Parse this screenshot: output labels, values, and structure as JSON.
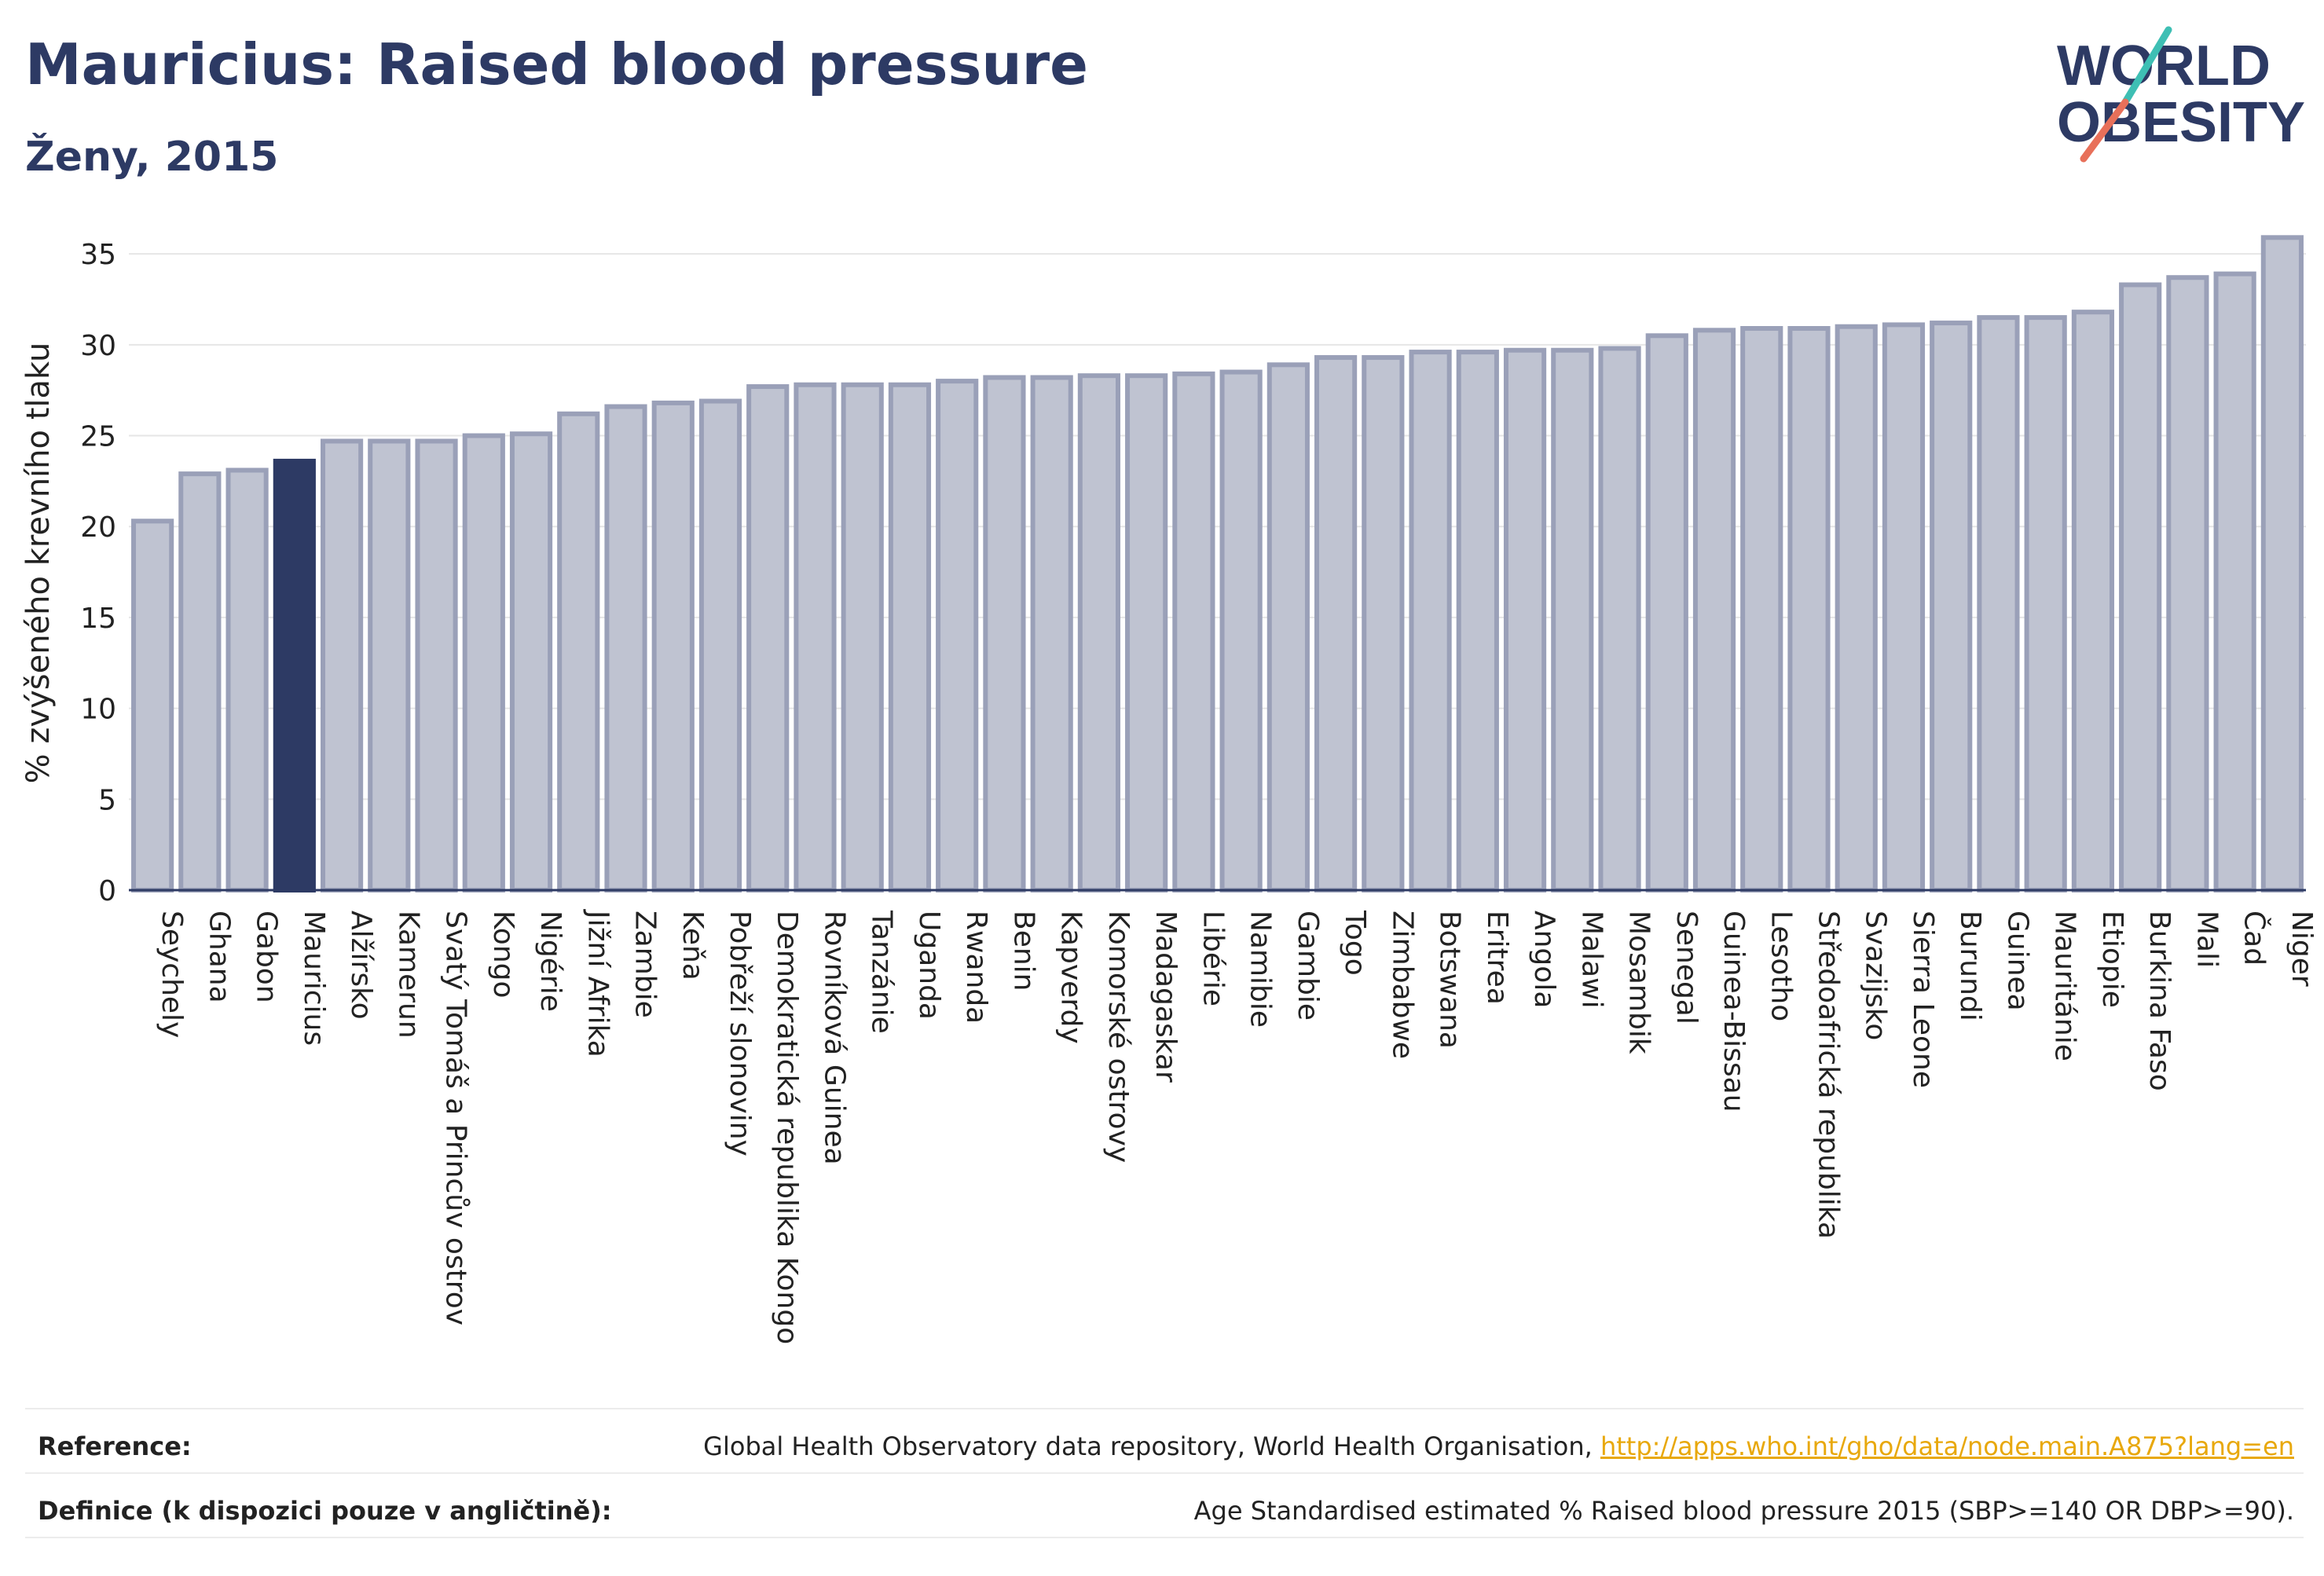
{
  "header": {
    "title": "Mauricius: Raised blood pressure",
    "subtitle": "Ženy, 2015"
  },
  "logo": {
    "line1": "WORLD",
    "line2": "OBESITY",
    "accent_colors": [
      "#3ebfb4",
      "#e8705a"
    ]
  },
  "colors": {
    "bar": "#bfc3d1",
    "bar_border": "#9aa0b8",
    "highlight": "#2d3a64",
    "text": "#2d3a64"
  },
  "chart_data": {
    "type": "bar",
    "ylabel": "% zvýšeného krevního tlaku",
    "ylim": [
      0,
      36
    ],
    "yticks": [
      0,
      5,
      10,
      15,
      20,
      25,
      30,
      35
    ],
    "grid": true,
    "highlight": "Mauricius",
    "categories": [
      "Seychely",
      "Ghana",
      "Gabon",
      "Mauricius",
      "Alžírsko",
      "Kamerun",
      "Svatý Tomáš a Princův ostrov",
      "Kongo",
      "Nigérie",
      "Jižní Afrika",
      "Zambie",
      "Keňa",
      "Pobřeží slonoviny",
      "Demokratická republika Kongo",
      "Rovníková Guinea",
      "Tanzánie",
      "Uganda",
      "Rwanda",
      "Benin",
      "Kapverdy",
      "Komorské ostrovy",
      "Madagaskar",
      "Libérie",
      "Namibie",
      "Gambie",
      "Togo",
      "Zimbabwe",
      "Botswana",
      "Eritrea",
      "Angola",
      "Malawi",
      "Mosambik",
      "Senegal",
      "Guinea-Bissau",
      "Lesotho",
      "Středoafrická republika",
      "Svazijsko",
      "Sierra Leone",
      "Burundi",
      "Guinea",
      "Mauritánie",
      "Etiopie",
      "Burkina Faso",
      "Mali",
      "Čad",
      "Niger"
    ],
    "values": [
      20.3,
      22.9,
      23.1,
      23.6,
      24.7,
      24.7,
      24.7,
      25.0,
      25.1,
      26.2,
      26.6,
      26.8,
      26.9,
      27.7,
      27.8,
      27.8,
      27.8,
      28.0,
      28.2,
      28.2,
      28.3,
      28.3,
      28.4,
      28.5,
      28.9,
      29.3,
      29.3,
      29.6,
      29.6,
      29.7,
      29.7,
      29.8,
      30.5,
      30.8,
      30.9,
      30.9,
      31.0,
      31.1,
      31.2,
      31.5,
      31.5,
      31.8,
      33.3,
      33.7,
      33.9,
      35.9
    ]
  },
  "footer": {
    "reference_label": "Reference:",
    "reference_text": "Global Health Observatory data repository, World Health Organisation, ",
    "reference_link": "http://apps.who.int/gho/data/node.main.A875?lang=en",
    "definition_label": "Definice (k dispozici pouze v angličtině):",
    "definition_text": "Age Standardised estimated % Raised blood pressure 2015 (SBP>=140 OR DBP>=90)."
  }
}
